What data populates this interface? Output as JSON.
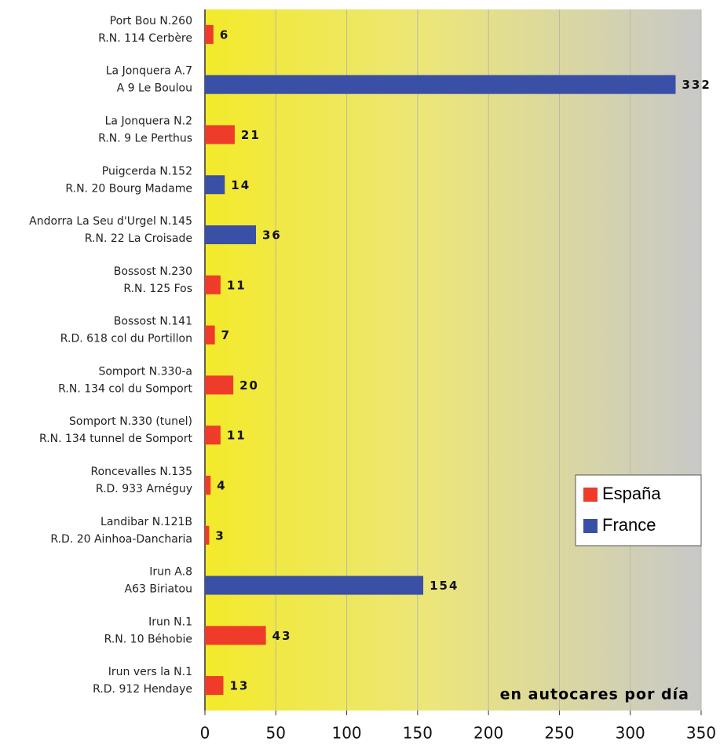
{
  "chart_data": {
    "type": "barh",
    "categories": [
      [
        "Port  Bou N.260",
        "R.N. 114 Cerbère"
      ],
      [
        "La Jonquera A.7",
        "A 9 Le Boulou"
      ],
      [
        "La Jonquera N.2",
        "R.N. 9 Le Perthus"
      ],
      [
        "Puigcerda N.152",
        "R.N. 20 Bourg Madame"
      ],
      [
        "Andorra La Seu d'Urgel N.145",
        "R.N. 22 La Croisade"
      ],
      [
        "Bossost  N.230",
        "R.N. 125 Fos"
      ],
      [
        "Bossost N.141",
        "R.D. 618 col du Portillon"
      ],
      [
        "Somport  N.330-a",
        "R.N. 134 col du Somport"
      ],
      [
        "Somport  N.330 (tunel)",
        "R.N. 134 tunnel de Somport"
      ],
      [
        "Roncevalles N.135",
        "R.D. 933  Arnéguy"
      ],
      [
        "Landibar N.121B",
        "R.D. 20 Ainhoa-Dancharia"
      ],
      [
        "Irun A.8",
        "A63  Biriatou"
      ],
      [
        "Irun N.1",
        "R.N. 10 Béhobie"
      ],
      [
        "Irun vers la N.1",
        "R.D. 912 Hendaye"
      ]
    ],
    "series": [
      {
        "name": "España",
        "color": "#ee3b2a",
        "values": [
          6,
          null,
          21,
          null,
          null,
          11,
          7,
          20,
          11,
          4,
          3,
          null,
          43,
          13
        ]
      },
      {
        "name": "France",
        "color": "#3a4fa6",
        "values": [
          null,
          332,
          null,
          14,
          36,
          null,
          null,
          null,
          null,
          null,
          null,
          154,
          null,
          null
        ]
      }
    ],
    "xlim": [
      0,
      350
    ],
    "xticks": [
      0,
      50,
      100,
      150,
      200,
      250,
      300,
      350
    ],
    "grid": true,
    "legend": "right",
    "annotation": "en autocares por día"
  }
}
